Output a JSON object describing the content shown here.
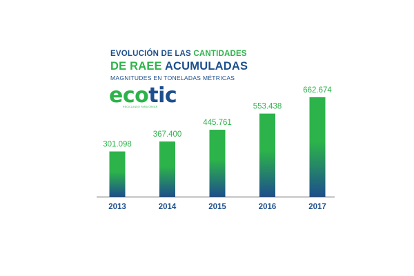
{
  "title": {
    "line1_prefix": "EVOLUCIÓN DE LAS",
    "line1_highlight": "CANTIDADES",
    "line2_highlight": "DE RAEE",
    "line2_rest": "ACUMULADAS",
    "subtitle": "MAGNITUDES EN TONELADAS MÉTRICAS"
  },
  "logo": {
    "part1": "eco",
    "part2": "tic",
    "tagline": "RECICLANDO PARA CREAR"
  },
  "colors": {
    "green": "#2cb34a",
    "blue": "#1d4f8c",
    "baseline": "#444444"
  },
  "chart_data": {
    "type": "bar",
    "categories": [
      "2013",
      "2014",
      "2015",
      "2016",
      "2017"
    ],
    "values": [
      301.098,
      367.4,
      445.761,
      553.438,
      662.674
    ],
    "value_labels": [
      "301.098",
      "367.400",
      "445.761",
      "553.438",
      "662.674"
    ],
    "title": "EVOLUCIÓN DE LAS CANTIDADES DE RAEE ACUMULADAS",
    "subtitle": "MAGNITUDES EN TONELADAS MÉTRICAS",
    "xlabel": "",
    "ylabel": "",
    "ylim": [
      0,
      700
    ],
    "grid": false,
    "legend": "none"
  }
}
